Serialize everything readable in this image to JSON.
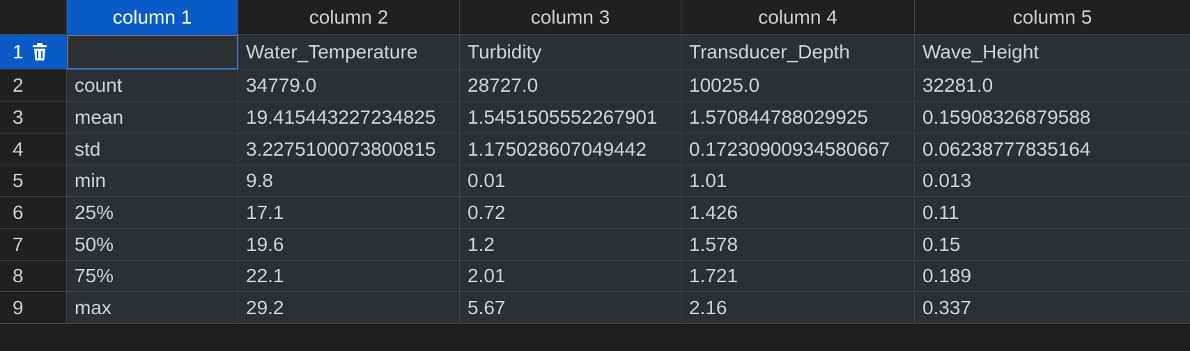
{
  "columns": [
    "column 1",
    "column 2",
    "column 3",
    "column 4",
    "column 5"
  ],
  "rows": [
    {
      "num": "1",
      "cells": [
        "",
        "Water_Temperature",
        "Turbidity",
        "Transducer_Depth",
        "Wave_Height"
      ]
    },
    {
      "num": "2",
      "cells": [
        "count",
        "34779.0",
        "28727.0",
        "10025.0",
        "32281.0"
      ]
    },
    {
      "num": "3",
      "cells": [
        "mean",
        "19.415443227234825",
        "1.5451505552267901",
        "1.570844788029925",
        "0.15908326879588"
      ]
    },
    {
      "num": "4",
      "cells": [
        "std",
        "3.2275100073800815",
        "1.175028607049442",
        "0.17230900934580667",
        "0.06238777835164"
      ]
    },
    {
      "num": "5",
      "cells": [
        "min",
        "9.8",
        "0.01",
        "1.01",
        "0.013"
      ]
    },
    {
      "num": "6",
      "cells": [
        "25%",
        "17.1",
        "0.72",
        "1.426",
        "0.11"
      ]
    },
    {
      "num": "7",
      "cells": [
        "50%",
        "19.6",
        "1.2",
        "1.578",
        "0.15"
      ]
    },
    {
      "num": "8",
      "cells": [
        "75%",
        "22.1",
        "2.01",
        "1.721",
        "0.189"
      ]
    },
    {
      "num": "9",
      "cells": [
        "max",
        "29.2",
        "5.67",
        "2.16",
        "0.337"
      ]
    }
  ],
  "icons": {
    "delete_row": "trash-icon"
  },
  "colors": {
    "selection": "#0a5ac8",
    "cell_background": "#2c3033",
    "header_background": "#1f2022"
  }
}
